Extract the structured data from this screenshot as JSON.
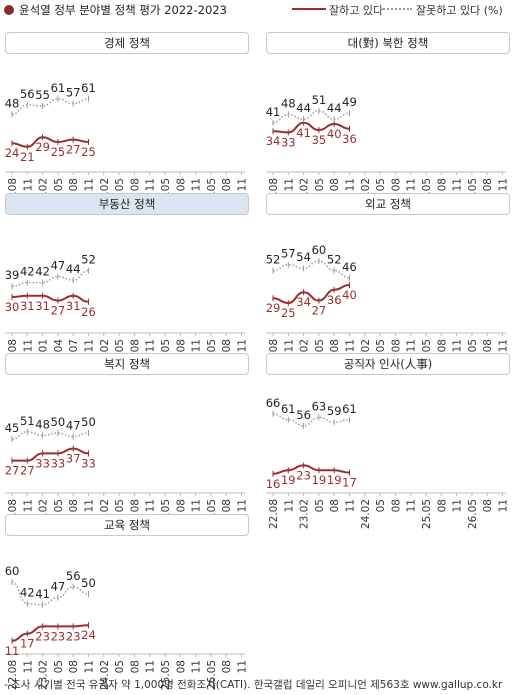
{
  "header": {
    "title": "윤석열 정부 분야별 정책 평가 2022-2023",
    "legend_good": "잘하고 있다",
    "legend_bad": "잘못하고 있다 (%)",
    "color_good": "#9b2d2d",
    "color_bad": "#9a9a9a"
  },
  "footer": "- 조사 시기별 전국 유권자 약 1,000명 전화조사(CATI). 한국갤럽 데일리 오피니언 제563호 www.gallup.co.kr",
  "chart_data": [
    {
      "type": "line",
      "title": "경제 정책",
      "x_ticks": [
        "22.08",
        "11",
        "23.02",
        "05",
        "08",
        "11",
        "24.02",
        "05",
        "08",
        "11",
        "25.05",
        "08",
        "11",
        "26.05",
        "08",
        "11"
      ],
      "series": [
        {
          "name": "잘하고 있다",
          "values": [
            24,
            21,
            29,
            25,
            27,
            25
          ]
        },
        {
          "name": "잘못하고 있다",
          "values": [
            48,
            56,
            55,
            61,
            57,
            61
          ]
        }
      ]
    },
    {
      "type": "line",
      "title": "대(對) 북한 정책",
      "x_ticks": [
        "22.08",
        "11",
        "23.02",
        "05",
        "08",
        "11",
        "24.02",
        "05",
        "08",
        "11",
        "25.05",
        "08",
        "11",
        "26.05",
        "08",
        "11"
      ],
      "series": [
        {
          "name": "잘하고 있다",
          "values": [
            34,
            33,
            41,
            35,
            40,
            36
          ]
        },
        {
          "name": "잘못하고 있다",
          "values": [
            41,
            48,
            44,
            51,
            44,
            49
          ]
        }
      ]
    },
    {
      "type": "line",
      "title": "부동산 정책",
      "x_ticks": [
        "22.08",
        "11",
        "23.01",
        "04",
        "07",
        "11",
        "24.02",
        "05",
        "08",
        "11",
        "25.05",
        "08",
        "11",
        "26.05",
        "08",
        "11"
      ],
      "series": [
        {
          "name": "잘하고 있다",
          "values": [
            30,
            31,
            31,
            27,
            31,
            26
          ]
        },
        {
          "name": "잘못하고 있다",
          "values": [
            39,
            42,
            42,
            47,
            44,
            52
          ]
        }
      ]
    },
    {
      "type": "line",
      "title": "외교 정책",
      "x_ticks": [
        "22.08",
        "11",
        "23.02",
        "05",
        "08",
        "11",
        "24.02",
        "05",
        "08",
        "11",
        "25.05",
        "08",
        "11",
        "26.05",
        "08",
        "11"
      ],
      "series": [
        {
          "name": "잘하고 있다",
          "values": [
            29,
            25,
            34,
            27,
            36,
            40
          ]
        },
        {
          "name": "잘못하고 있다",
          "values": [
            52,
            57,
            54,
            60,
            52,
            46
          ]
        }
      ]
    },
    {
      "type": "line",
      "title": "복지 정책",
      "x_ticks": [
        "22.08",
        "11",
        "23.02",
        "05",
        "08",
        "11",
        "24.02",
        "05",
        "08",
        "11",
        "25.05",
        "08",
        "11",
        "26.05",
        "08",
        "11"
      ],
      "series": [
        {
          "name": "잘하고 있다",
          "values": [
            27,
            27,
            33,
            33,
            37,
            33
          ]
        },
        {
          "name": "잘못하고 있다",
          "values": [
            45,
            51,
            48,
            50,
            47,
            50
          ]
        }
      ]
    },
    {
      "type": "line",
      "title": "공직자 인사(人事)",
      "x_ticks": [
        "22.08",
        "11",
        "23.02",
        "05",
        "08",
        "11",
        "24.02",
        "05",
        "08",
        "11",
        "25.05",
        "08",
        "11",
        "26.05",
        "08",
        "11"
      ],
      "series": [
        {
          "name": "잘하고 있다",
          "values": [
            16,
            19,
            23,
            19,
            19,
            17
          ]
        },
        {
          "name": "잘못하고 있다",
          "values": [
            66,
            61,
            56,
            63,
            59,
            61
          ]
        }
      ]
    },
    {
      "type": "line",
      "title": "교육 정책",
      "x_ticks": [
        "22.08",
        "11",
        "23.02",
        "05",
        "08",
        "11",
        "24.02",
        "05",
        "08",
        "11",
        "25.05",
        "08",
        "11",
        "26.05",
        "08",
        "11"
      ],
      "series": [
        {
          "name": "잘하고 있다",
          "values": [
            11,
            17,
            23,
            23,
            23,
            24
          ]
        },
        {
          "name": "잘못하고 있다",
          "values": [
            60,
            42,
            41,
            47,
            56,
            50
          ]
        }
      ]
    }
  ]
}
